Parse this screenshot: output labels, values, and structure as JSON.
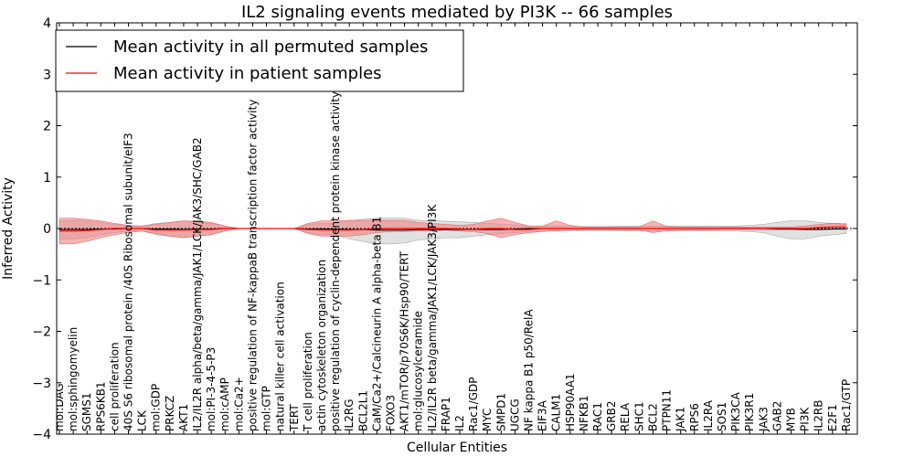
{
  "chart_data": {
    "type": "line",
    "title": "IL2 signaling events mediated by PI3K -- 66 samples",
    "xlabel": "Cellular Entities",
    "ylabel": "Inferred Activity",
    "ylim": [
      -4,
      4
    ],
    "yticks": [
      -4,
      -3,
      -2,
      -1,
      0,
      1,
      2,
      3,
      4
    ],
    "ytick_labels": [
      "−4",
      "−3",
      "−2",
      "−1",
      "0",
      "1",
      "2",
      "3",
      "4"
    ],
    "legend_position": "upper-left",
    "legend": [
      "Mean activity in all permuted samples",
      "Mean activity in patient samples"
    ],
    "colors": {
      "permuted": "#000000",
      "patient": "#ff0000",
      "patient_band": "#f08080",
      "permuted_band": "#c8c8c8"
    },
    "categories": [
      "mol:DAG",
      "mol:sphingomyelin",
      "SGMS1",
      "RPS6KB1",
      "cell proliferation",
      "40S S6 ribosomal protein /40S Ribosomal subunit/eIF3",
      "LCK",
      "mol:GDP",
      "PRKCZ",
      "AKT1",
      "IL2/IL2R alpha/beta/gamma/JAK1/LCK/JAK3/SHC/GAB2",
      "mol:PI-3-4-5-P3",
      "mol:cAMP",
      "mol:Ca2+",
      "positive regulation of NF-kappaB transcription factor activity",
      "mol:GTP",
      "natural killer cell activation",
      "TERT",
      "T cell proliferation",
      "actin cytoskeleton organization",
      "positive regulation of cyclin-dependent protein kinase activity",
      "IL2RG",
      "BCL2L1",
      "CaM/Ca2+/Calcineurin A alpha-beta B1",
      "FOXO3",
      "AKT1/mTOR/p70S6K/Hsp90/TERT",
      "mol:glucosylceramide",
      "IL2/IL2R beta/gamma/JAK1/LCK/JAK3/PI3K",
      "FRAP1",
      "IL2",
      "Rac1/GDP",
      "MYC",
      "SMPD1",
      "UGCG",
      "NF kappa B1 p50/RelA",
      "EIF3A",
      "CALM1",
      "HSP90AA1",
      "NFKB1",
      "RAC1",
      "GRB2",
      "RELA",
      "SHC1",
      "BCL2",
      "PTPN11",
      "JAK1",
      "RPS6",
      "IL2RA",
      "SOS1",
      "PIK3CA",
      "PIK3R1",
      "JAK3",
      "GAB2",
      "MYB",
      "PI3K",
      "IL2RB",
      "E2F1",
      "Rac1/GTP"
    ],
    "series": [
      {
        "name": "Mean activity in all permuted samples",
        "values": [
          -0.02,
          -0.02,
          -0.02,
          -0.01,
          -0.01,
          0,
          0,
          -0.01,
          -0.01,
          -0.02,
          -0.01,
          -0.01,
          0,
          0,
          0,
          0,
          0,
          0,
          -0.01,
          -0.01,
          -0.01,
          -0.02,
          -0.02,
          -0.03,
          -0.03,
          -0.03,
          -0.02,
          -0.02,
          -0.02,
          -0.02,
          -0.02,
          -0.02,
          -0.02,
          -0.01,
          0,
          0,
          0,
          0,
          0,
          0,
          0,
          0,
          0,
          0,
          0,
          0,
          0,
          0,
          0,
          0,
          0,
          0,
          -0.01,
          -0.01,
          -0.02,
          -0.02,
          -0.01,
          -0.01
        ],
        "band_low": [
          -0.2,
          -0.2,
          -0.18,
          -0.12,
          -0.08,
          -0.05,
          -0.05,
          -0.12,
          -0.15,
          -0.18,
          -0.15,
          -0.12,
          -0.05,
          0,
          0,
          0,
          0,
          0,
          -0.08,
          -0.12,
          -0.12,
          -0.2,
          -0.25,
          -0.3,
          -0.3,
          -0.28,
          -0.22,
          -0.2,
          -0.18,
          -0.18,
          -0.15,
          -0.12,
          -0.1,
          -0.08,
          -0.06,
          -0.05,
          -0.05,
          -0.04,
          -0.04,
          -0.04,
          -0.04,
          -0.05,
          -0.05,
          -0.05,
          -0.05,
          -0.05,
          -0.05,
          -0.05,
          -0.05,
          -0.05,
          -0.06,
          -0.08,
          -0.15,
          -0.2,
          -0.2,
          -0.15,
          -0.12,
          -0.1
        ],
        "band_high": [
          0.15,
          0.15,
          0.15,
          0.12,
          0.08,
          0.05,
          0.05,
          0.1,
          0.12,
          0.15,
          0.12,
          0.1,
          0.05,
          0,
          0,
          0,
          0,
          0,
          0.08,
          0.1,
          0.1,
          0.15,
          0.18,
          0.2,
          0.2,
          0.2,
          0.16,
          0.15,
          0.14,
          0.13,
          0.12,
          0.1,
          0.08,
          0.07,
          0.05,
          0.05,
          0.05,
          0.04,
          0.04,
          0.04,
          0.04,
          0.05,
          0.05,
          0.05,
          0.05,
          0.05,
          0.05,
          0.05,
          0.05,
          0.05,
          0.06,
          0.08,
          0.12,
          0.15,
          0.15,
          0.12,
          0.1,
          0.1
        ]
      },
      {
        "name": "Mean activity in patient samples",
        "values": [
          -0.05,
          -0.05,
          -0.04,
          -0.02,
          0,
          0,
          0,
          -0.03,
          -0.03,
          -0.03,
          -0.02,
          -0.02,
          0,
          0,
          0,
          0,
          0,
          0,
          -0.02,
          -0.03,
          -0.03,
          -0.03,
          -0.02,
          0,
          0,
          0,
          0,
          0,
          0,
          -0.01,
          -0.02,
          0,
          0,
          -0.02,
          -0.02,
          0,
          0,
          0,
          0,
          0,
          0,
          0,
          0,
          0,
          0,
          0,
          0,
          0,
          0,
          0,
          0,
          0,
          0,
          0,
          0,
          0.02,
          0.03,
          0.03
        ],
        "band_low": [
          -0.3,
          -0.3,
          -0.25,
          -0.18,
          -0.12,
          -0.08,
          -0.05,
          -0.1,
          -0.15,
          -0.18,
          -0.15,
          -0.12,
          -0.05,
          0,
          0,
          0,
          0,
          0,
          -0.1,
          -0.15,
          -0.15,
          -0.15,
          -0.12,
          -0.08,
          -0.06,
          -0.06,
          -0.05,
          -0.05,
          -0.03,
          -0.05,
          -0.06,
          -0.1,
          -0.18,
          -0.12,
          -0.08,
          -0.06,
          -0.04,
          -0.03,
          -0.03,
          -0.03,
          -0.03,
          -0.03,
          -0.03,
          -0.08,
          -0.04,
          -0.03,
          -0.03,
          -0.03,
          -0.02,
          -0.02,
          -0.02,
          -0.02,
          -0.02,
          -0.02,
          -0.02,
          -0.02,
          -0.02,
          0
        ],
        "band_high": [
          0.2,
          0.2,
          0.18,
          0.15,
          0.1,
          0.06,
          0.05,
          0.08,
          0.12,
          0.15,
          0.14,
          0.12,
          0.05,
          0,
          0,
          0,
          0,
          0,
          0.1,
          0.15,
          0.15,
          0.16,
          0.16,
          0.16,
          0.16,
          0.16,
          0.12,
          0.1,
          0.08,
          0.06,
          0.08,
          0.15,
          0.2,
          0.12,
          0.05,
          0.05,
          0.15,
          0.06,
          0.03,
          0.03,
          0.03,
          0.03,
          0.03,
          0.15,
          0.04,
          0.03,
          0.03,
          0.03,
          0.03,
          0.03,
          0.03,
          0.03,
          0.03,
          0.03,
          0.05,
          0.08,
          0.1,
          0.08
        ]
      }
    ]
  }
}
